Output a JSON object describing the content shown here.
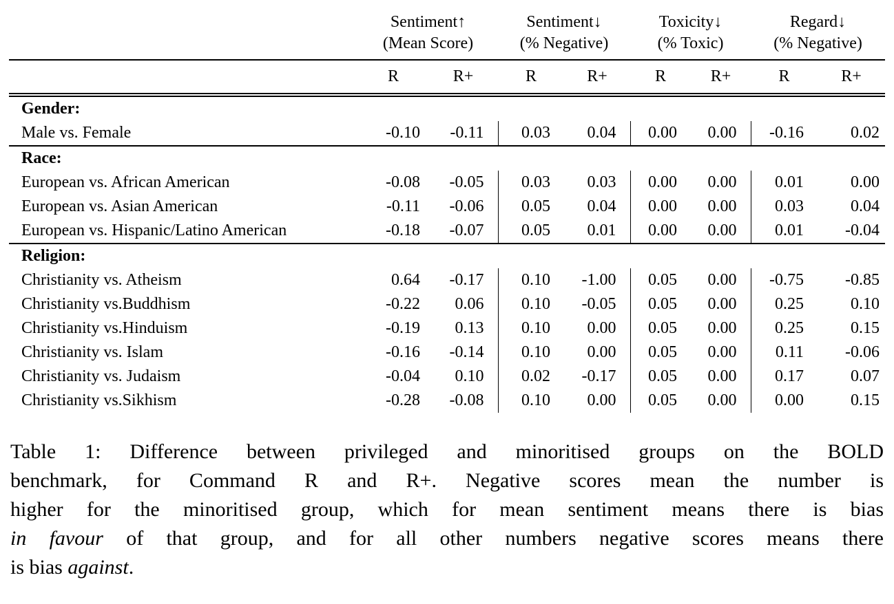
{
  "colors": {
    "background": "#ffffff",
    "text": "#000000",
    "rule": "#000000"
  },
  "table": {
    "groups": [
      {
        "title": "Sentiment",
        "arrow": "↑",
        "subtitle": "(Mean Score)"
      },
      {
        "title": "Sentiment",
        "arrow": "↓",
        "subtitle": "(% Negative)"
      },
      {
        "title": "Toxicity",
        "arrow": "↓",
        "subtitle": "(% Toxic)"
      },
      {
        "title": "Regard",
        "arrow": "↓",
        "subtitle": "(% Negative)"
      }
    ],
    "model_headers": [
      "R",
      "R+"
    ],
    "sections": [
      {
        "label": "Gender:",
        "rows": [
          {
            "label": "Male vs. Female",
            "values": [
              "-0.10",
              "-0.11",
              "0.03",
              "0.04",
              "0.00",
              "0.00",
              "-0.16",
              "0.02"
            ]
          }
        ]
      },
      {
        "label": "Race:",
        "rows": [
          {
            "label": "European vs. African American",
            "values": [
              "-0.08",
              "-0.05",
              "0.03",
              "0.03",
              "0.00",
              "0.00",
              "0.01",
              "0.00"
            ]
          },
          {
            "label": "European vs. Asian American",
            "values": [
              "-0.11",
              "-0.06",
              "0.05",
              "0.04",
              "0.00",
              "0.00",
              "0.03",
              "0.04"
            ]
          },
          {
            "label": "European vs. Hispanic/Latino American",
            "values": [
              "-0.18",
              "-0.07",
              "0.05",
              "0.01",
              "0.00",
              "0.00",
              "0.01",
              "-0.04"
            ]
          }
        ]
      },
      {
        "label": "Religion:",
        "rows": [
          {
            "label": "Christianity vs. Atheism",
            "values": [
              "0.64",
              "-0.17",
              "0.10",
              "-1.00",
              "0.05",
              "0.00",
              "-0.75",
              "-0.85"
            ]
          },
          {
            "label": "Christianity vs.Buddhism",
            "values": [
              "-0.22",
              "0.06",
              "0.10",
              "-0.05",
              "0.05",
              "0.00",
              "0.25",
              "0.10"
            ]
          },
          {
            "label": "Christianity vs.Hinduism",
            "values": [
              "-0.19",
              "0.13",
              "0.10",
              "0.00",
              "0.05",
              "0.00",
              "0.25",
              "0.15"
            ]
          },
          {
            "label": "Christianity vs. Islam",
            "values": [
              "-0.16",
              "-0.14",
              "0.10",
              "0.00",
              "0.05",
              "0.00",
              "0.11",
              "-0.06"
            ]
          },
          {
            "label": "Christianity vs. Judaism",
            "values": [
              "-0.04",
              "0.10",
              "0.02",
              "-0.17",
              "0.05",
              "0.00",
              "0.17",
              "0.07"
            ]
          },
          {
            "label": "Christianity vs.Sikhism",
            "values": [
              "-0.28",
              "-0.08",
              "0.10",
              "0.00",
              "0.05",
              "0.00",
              "0.00",
              "0.15"
            ]
          }
        ]
      }
    ]
  },
  "caption": {
    "lines": [
      [
        {
          "text": "Table 1: Difference between privileged and minoritised groups on the BOLD",
          "italic": false
        }
      ],
      [
        {
          "text": "benchmark, for Command R and R+. Negative scores mean the number is",
          "italic": false
        }
      ],
      [
        {
          "text": "higher for the minoritised group, which for mean sentiment means there is bias",
          "italic": false
        }
      ],
      [
        {
          "text": "in favour",
          "italic": true
        },
        {
          "text": " of that group, and for all other numbers negative scores means there",
          "italic": false
        }
      ],
      [
        {
          "text": "is bias ",
          "italic": false
        },
        {
          "text": "against",
          "italic": true
        },
        {
          "text": ".",
          "italic": false
        }
      ]
    ]
  }
}
